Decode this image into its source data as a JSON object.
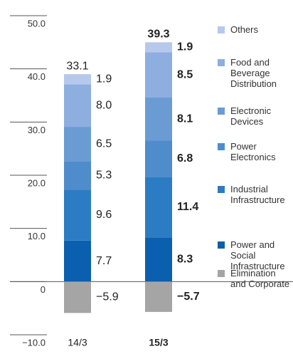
{
  "chart_data": {
    "type": "stacked_bar",
    "categories": [
      "14/3",
      "15/3"
    ],
    "totals": [
      33.1,
      39.3
    ],
    "series": [
      {
        "name": "Power and Social Infrastructure",
        "color": "#0a5fae",
        "values": [
          7.7,
          8.3
        ]
      },
      {
        "name": "Industrial Infrastructure",
        "color": "#2b7cc3",
        "values": [
          9.6,
          11.4
        ]
      },
      {
        "name": "Power Electronics",
        "color": "#4f8ccb",
        "values": [
          5.3,
          6.8
        ]
      },
      {
        "name": "Electronic Devices",
        "color": "#6b9bd3",
        "values": [
          6.5,
          8.1
        ]
      },
      {
        "name": "Food and Beverage Distribution",
        "color": "#8eaee0",
        "values": [
          8.0,
          8.5
        ],
        "value_labels": [
          "8.0",
          "8.5"
        ]
      },
      {
        "name": "Others",
        "color": "#b6c9ec",
        "values": [
          1.9,
          1.9
        ]
      },
      {
        "name": "Elimination and Corporate",
        "color": "#a5a5a5",
        "values": [
          -5.9,
          -5.7
        ],
        "value_labels": [
          "−5.9",
          "−5.7"
        ]
      }
    ],
    "ylim": [
      -10,
      50
    ],
    "yticks": [
      {
        "value": -10,
        "label": "−10.0"
      },
      0,
      {
        "value": 10,
        "label": "10.0"
      },
      {
        "value": 20,
        "label": "20.0"
      },
      {
        "value": 30,
        "label": "30.0"
      },
      {
        "value": 40,
        "label": "40.0"
      },
      {
        "value": 50,
        "label": "50.0"
      }
    ],
    "grid": true
  }
}
